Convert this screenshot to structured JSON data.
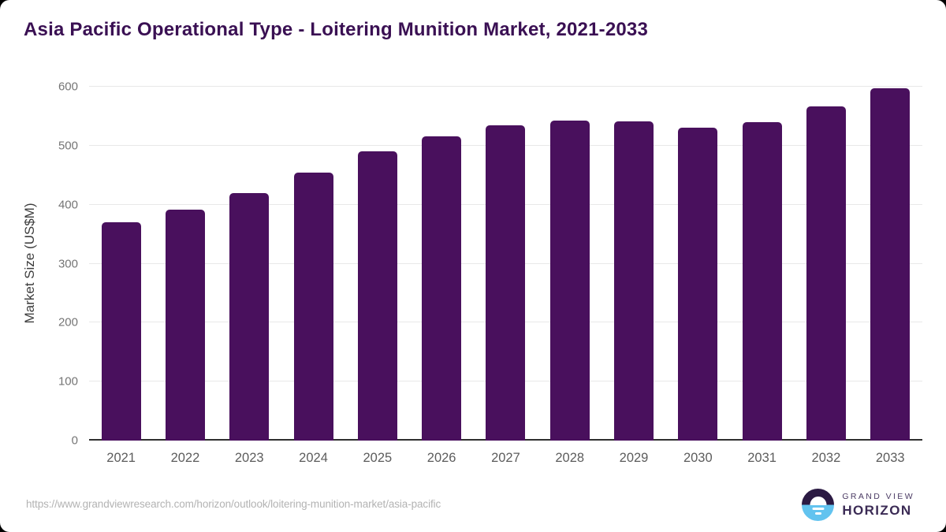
{
  "chart_data": {
    "type": "bar",
    "title": "Asia Pacific Operational Type - Loitering Munition Market, 2021-2033",
    "categories": [
      "2021",
      "2022",
      "2023",
      "2024",
      "2025",
      "2026",
      "2027",
      "2028",
      "2029",
      "2030",
      "2031",
      "2032",
      "2033"
    ],
    "values": [
      370,
      392,
      420,
      454,
      490,
      516,
      534,
      542,
      541,
      531,
      540,
      566,
      597
    ],
    "xlabel": "",
    "ylabel": "Market Size (US$M)",
    "ylim": [
      0,
      600
    ],
    "yticks": [
      0,
      100,
      200,
      300,
      400,
      500,
      600
    ],
    "grid": "horizontal",
    "legend": "none",
    "bar_color": "#49105D",
    "title_color": "#3A1053"
  },
  "footer": {
    "source_url": "https://www.grandviewresearch.com/horizon/outlook/loitering-munition-market/asia-pacific",
    "logo": {
      "top": "GRAND VIEW",
      "bottom": "HORIZON"
    }
  }
}
